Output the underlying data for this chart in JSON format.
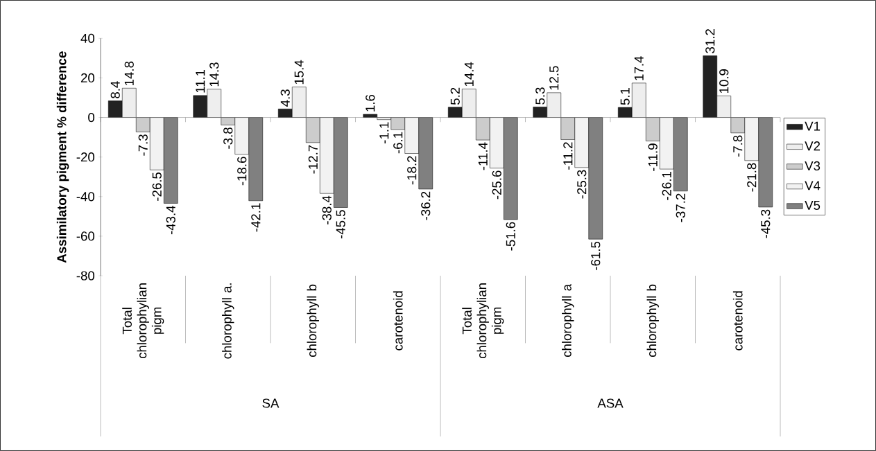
{
  "chart_data": {
    "type": "bar",
    "ylabel": "Assimilatory pigment % difference",
    "categories": [
      "Total chlorophylian pigm",
      "chlorophyll a.",
      "chlorophyll b",
      "carotenoid",
      "Total chlorophylian pigm",
      "chlorophyll a",
      "chlorophyll b",
      "carotenoid"
    ],
    "series": [
      {
        "name": "V1",
        "color": "#222222",
        "values": [
          8.4,
          11.1,
          4.3,
          1.6,
          5.2,
          5.3,
          5.1,
          31.2
        ]
      },
      {
        "name": "V2",
        "color": "#eeeeee",
        "values": [
          14.8,
          14.3,
          15.4,
          -1.1,
          14.4,
          12.5,
          17.4,
          10.9
        ]
      },
      {
        "name": "V3",
        "color": "#cccccc",
        "values": [
          -7.3,
          -3.8,
          -12.7,
          -6.1,
          -11.4,
          -11.2,
          -11.9,
          -7.8
        ]
      },
      {
        "name": "V4",
        "color": "#f2f2f2",
        "values": [
          -26.5,
          -18.6,
          -38.4,
          -18.2,
          -25.6,
          -25.3,
          -26.1,
          -21.8
        ]
      },
      {
        "name": "V5",
        "color": "#808080",
        "values": [
          -43.4,
          -42.1,
          -45.5,
          -36.2,
          -51.6,
          -61.5,
          -37.2,
          -45.3
        ]
      }
    ],
    "annotations": [
      "SA",
      "ASA"
    ],
    "ylim": [
      -80,
      40
    ],
    "yticks": [
      -80,
      -60,
      -40,
      -20,
      0,
      20,
      40
    ],
    "data_labels": true,
    "legend": "right"
  }
}
